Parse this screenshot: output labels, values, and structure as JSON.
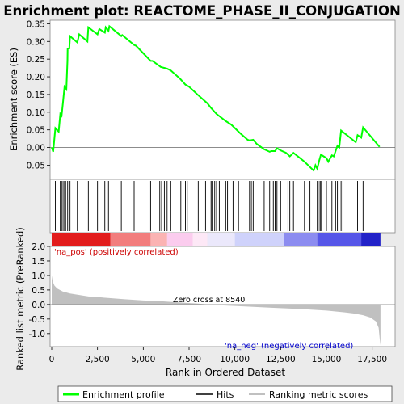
{
  "title": "Enrichment plot: REACTOME_PHASE_II_CONJUGATION",
  "colors": {
    "enrichment_line": "#00ff00",
    "hits": "#000000",
    "ranking_fill": "#c0c0c0",
    "pos_label": "#cc0000",
    "neg_label": "#0000cc",
    "zero_cross_line": "#999999",
    "background": "#ebebeb",
    "panel": "#ffffff"
  },
  "chart_data": [
    {
      "type": "line",
      "name": "enrichment-score-panel",
      "ylabel": "Enrichment score (ES)",
      "ylim": [
        -0.09,
        0.36
      ],
      "xlim": [
        0,
        18000
      ],
      "yticks": [
        "0.35",
        "0.30",
        "0.25",
        "0.20",
        "0.15",
        "0.10",
        "0.05",
        "0.00",
        "-0.05"
      ],
      "series": [
        {
          "name": "Enrichment profile",
          "points": [
            [
              0,
              0.0
            ],
            [
              80,
              -0.012
            ],
            [
              200,
              0.055
            ],
            [
              380,
              0.045
            ],
            [
              470,
              0.095
            ],
            [
              540,
              0.09
            ],
            [
              620,
              0.13
            ],
            [
              700,
              0.172
            ],
            [
              800,
              0.165
            ],
            [
              860,
              0.245
            ],
            [
              870,
              0.28
            ],
            [
              960,
              0.28
            ],
            [
              1000,
              0.315
            ],
            [
              1400,
              0.297
            ],
            [
              1500,
              0.32
            ],
            [
              1950,
              0.3
            ],
            [
              2000,
              0.34
            ],
            [
              2500,
              0.32
            ],
            [
              2600,
              0.335
            ],
            [
              2900,
              0.325
            ],
            [
              2950,
              0.34
            ],
            [
              3100,
              0.33
            ],
            [
              3150,
              0.343
            ],
            [
              3800,
              0.315
            ],
            [
              3850,
              0.318
            ],
            [
              4500,
              0.29
            ],
            [
              4600,
              0.288
            ],
            [
              5400,
              0.245
            ],
            [
              5500,
              0.245
            ],
            [
              5900,
              0.23
            ],
            [
              5950,
              0.228
            ],
            [
              6300,
              0.223
            ],
            [
              6500,
              0.218
            ],
            [
              7000,
              0.195
            ],
            [
              7300,
              0.178
            ],
            [
              7500,
              0.172
            ],
            [
              8000,
              0.148
            ],
            [
              8500,
              0.125
            ],
            [
              8700,
              0.112
            ],
            [
              9000,
              0.095
            ],
            [
              9500,
              0.075
            ],
            [
              9800,
              0.065
            ],
            [
              10300,
              0.04
            ],
            [
              10700,
              0.022
            ],
            [
              10800,
              0.02
            ],
            [
              11000,
              0.022
            ],
            [
              11200,
              0.01
            ],
            [
              11600,
              -0.005
            ],
            [
              11900,
              -0.012
            ],
            [
              12000,
              -0.01
            ],
            [
              12200,
              -0.01
            ],
            [
              12300,
              -0.002
            ],
            [
              12500,
              -0.008
            ],
            [
              12800,
              -0.015
            ],
            [
              13000,
              -0.025
            ],
            [
              13200,
              -0.015
            ],
            [
              13800,
              -0.04
            ],
            [
              14100,
              -0.055
            ],
            [
              14300,
              -0.065
            ],
            [
              14400,
              -0.05
            ],
            [
              14500,
              -0.06
            ],
            [
              14600,
              -0.038
            ],
            [
              14700,
              -0.02
            ],
            [
              15000,
              -0.03
            ],
            [
              15100,
              -0.04
            ],
            [
              15300,
              -0.022
            ],
            [
              15400,
              -0.025
            ],
            [
              15500,
              -0.01
            ],
            [
              15600,
              0.005
            ],
            [
              15700,
              0.0
            ],
            [
              15800,
              0.048
            ],
            [
              16600,
              0.015
            ],
            [
              16700,
              0.035
            ],
            [
              16900,
              0.028
            ],
            [
              17000,
              0.057
            ],
            [
              17900,
              0.002
            ]
          ]
        }
      ]
    },
    {
      "type": "scatter",
      "name": "hits-panel",
      "series": [
        {
          "name": "Hits",
          "x": [
            200,
            470,
            540,
            620,
            700,
            760,
            870,
            1000,
            1400,
            2000,
            2500,
            2900,
            3100,
            3800,
            4500,
            5400,
            5900,
            6000,
            6150,
            6300,
            6500,
            7050,
            7300,
            7400,
            8000,
            8400,
            8700,
            8750,
            8900,
            9000,
            9150,
            9500,
            9600,
            9900,
            10200,
            10800,
            10900,
            11000,
            11600,
            11900,
            12100,
            12200,
            12300,
            12500,
            12900,
            13000,
            13200,
            13800,
            14100,
            14500,
            14550,
            14650,
            14700,
            15000,
            15300,
            15500,
            15600,
            15800,
            15900,
            16700,
            17000
          ]
        }
      ]
    },
    {
      "type": "heatmap",
      "name": "ranking-color-bar",
      "xlim": [
        0,
        18000
      ],
      "bins": [
        {
          "x": [
            0,
            3200
          ],
          "color": "#e21c1c"
        },
        {
          "x": [
            3200,
            5400
          ],
          "color": "#f27d7d"
        },
        {
          "x": [
            5400,
            6300
          ],
          "color": "#fbb3b3"
        },
        {
          "x": [
            6300,
            7700
          ],
          "color": "#fbccee"
        },
        {
          "x": [
            7700,
            8500
          ],
          "color": "#fde8f6"
        },
        {
          "x": [
            8500,
            10000
          ],
          "color": "#ebe8fb"
        },
        {
          "x": [
            10000,
            12700
          ],
          "color": "#cfd2fb"
        },
        {
          "x": [
            12700,
            14500
          ],
          "color": "#8c8cf0"
        },
        {
          "x": [
            14500,
            16900
          ],
          "color": "#5656e8"
        },
        {
          "x": [
            16900,
            17950
          ],
          "color": "#2222c8"
        }
      ]
    },
    {
      "type": "area",
      "name": "ranked-metric-panel",
      "ylabel": "Ranked list metric (PreRanked)",
      "xlabel": "Rank in Ordered Dataset",
      "ylim": [
        -1.45,
        2.0
      ],
      "xlim": [
        0,
        18000
      ],
      "yticks": [
        "2.0",
        "1.5",
        "1.0",
        "0.5",
        "0.0",
        "-0.5",
        "-1.0"
      ],
      "xticks": [
        "0",
        "2,500",
        "5,000",
        "7,500",
        "10,000",
        "12,500",
        "15,000",
        "17,500"
      ],
      "xtick_values": [
        0,
        2500,
        5000,
        7500,
        10000,
        12500,
        15000,
        17500
      ],
      "series": [
        {
          "name": "Ranking metric scores",
          "points": [
            [
              0,
              1.0
            ],
            [
              50,
              0.8
            ],
            [
              150,
              0.65
            ],
            [
              300,
              0.55
            ],
            [
              600,
              0.45
            ],
            [
              1000,
              0.38
            ],
            [
              2000,
              0.28
            ],
            [
              3000,
              0.23
            ],
            [
              4000,
              0.18
            ],
            [
              5000,
              0.14
            ],
            [
              6000,
              0.11
            ],
            [
              7000,
              0.07
            ],
            [
              8000,
              0.03
            ],
            [
              8540,
              0.0
            ],
            [
              9000,
              -0.02
            ],
            [
              10000,
              -0.05
            ],
            [
              11000,
              -0.08
            ],
            [
              12000,
              -0.11
            ],
            [
              13000,
              -0.14
            ],
            [
              14000,
              -0.17
            ],
            [
              15000,
              -0.21
            ],
            [
              16000,
              -0.27
            ],
            [
              16500,
              -0.31
            ],
            [
              17000,
              -0.37
            ],
            [
              17400,
              -0.45
            ],
            [
              17700,
              -0.58
            ],
            [
              17850,
              -0.8
            ],
            [
              17920,
              -1.25
            ],
            [
              17950,
              -1.4
            ]
          ]
        }
      ],
      "annotations": {
        "pos": "'na_pos' (positively correlated)",
        "neg": "'na_neg' (negatively correlated)",
        "zero_cross": "Zero cross at 8540",
        "zero_cross_value": 8540
      }
    }
  ],
  "legend": {
    "items": [
      "Enrichment profile",
      "Hits",
      "Ranking metric scores"
    ]
  }
}
